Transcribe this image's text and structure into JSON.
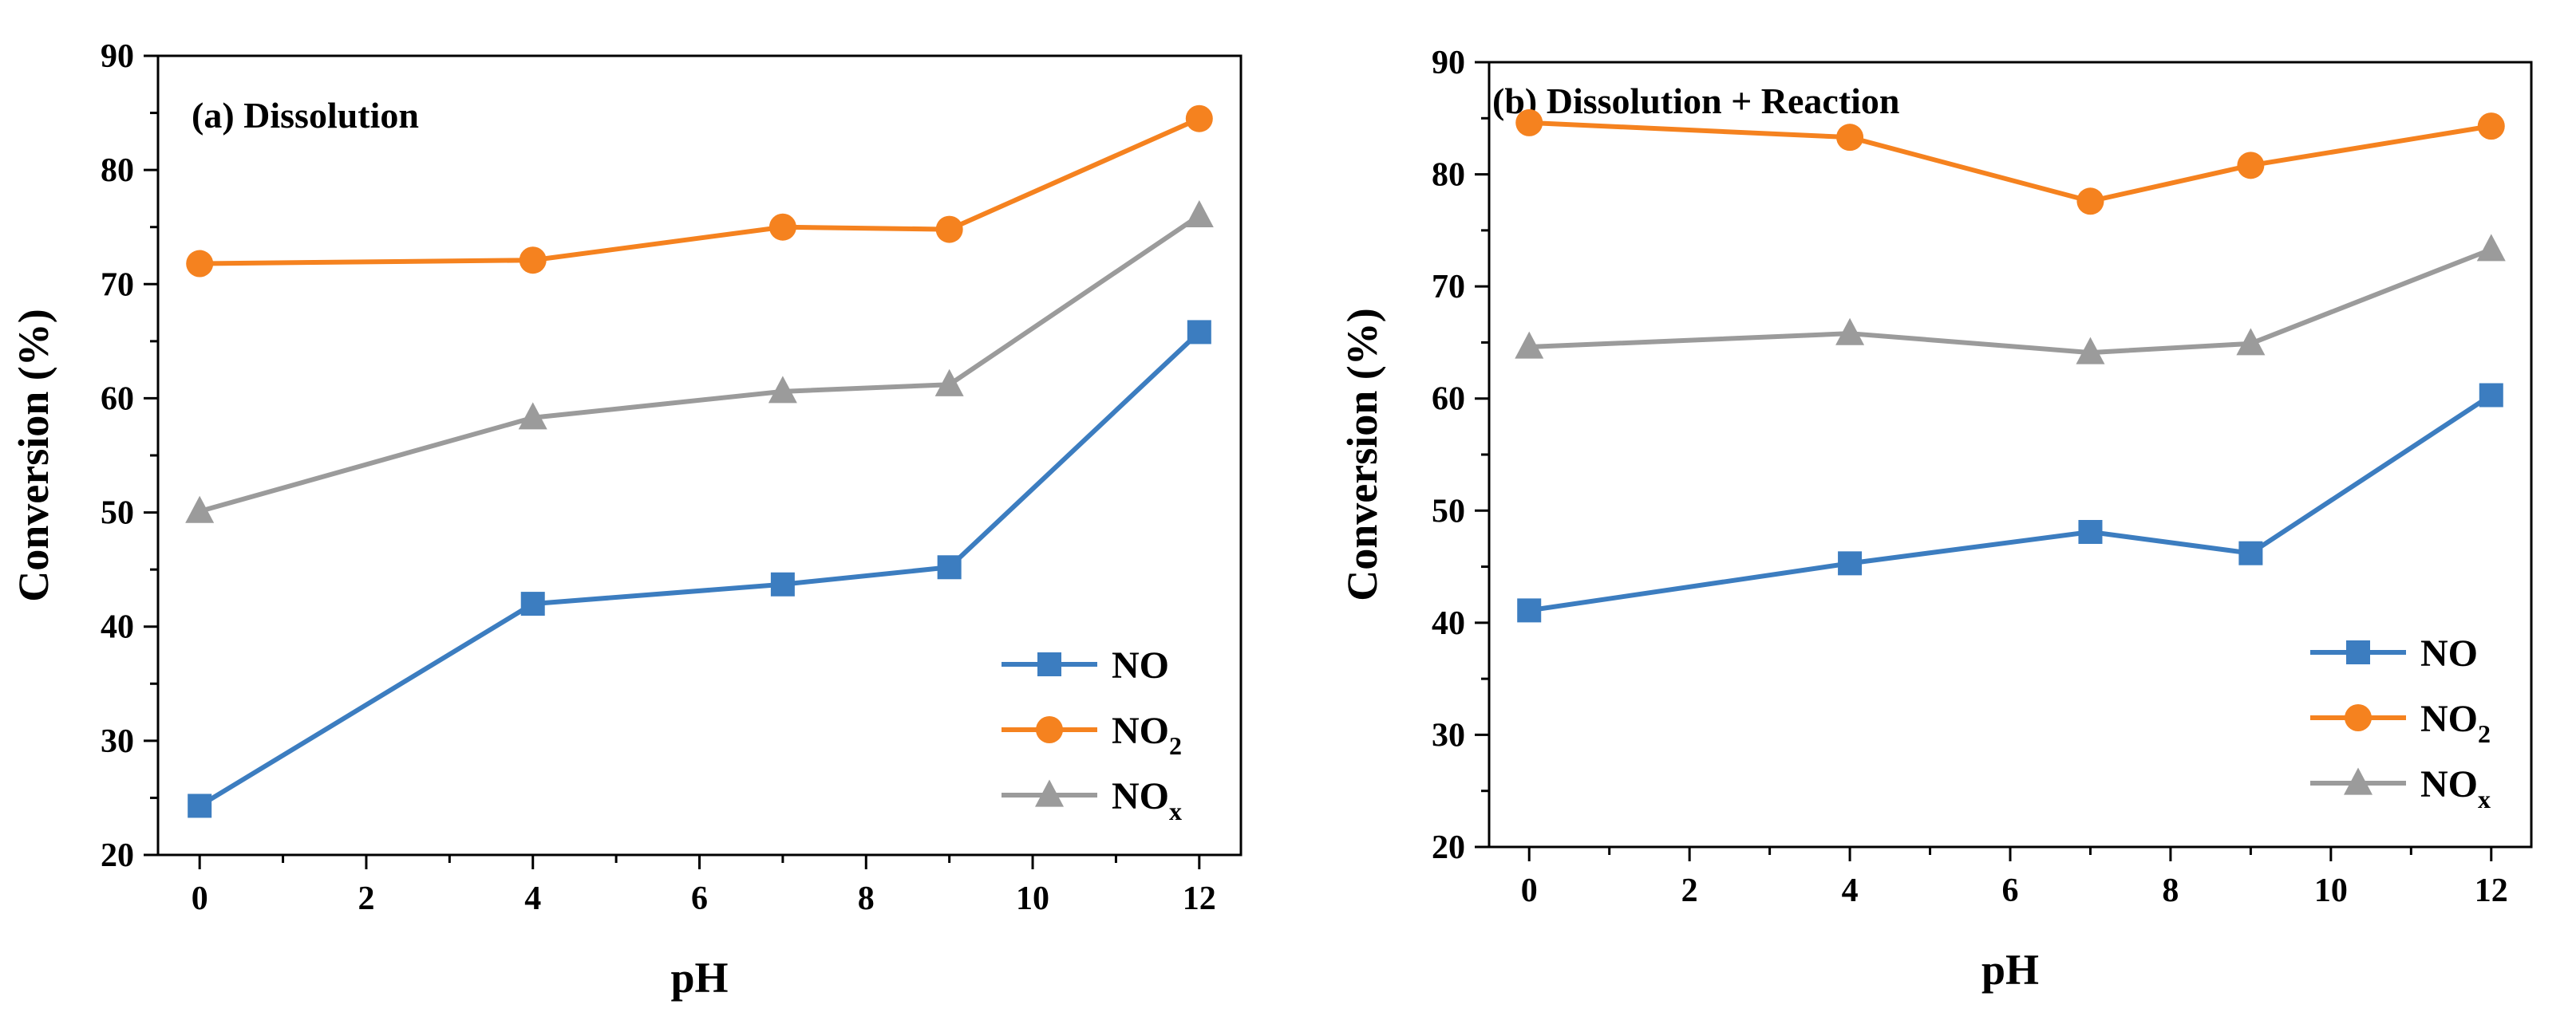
{
  "chart_data": [
    {
      "type": "line",
      "title": "(a) Dissolution",
      "xlabel": "pH",
      "ylabel": "Conversion (%)",
      "xlim": [
        -0.5,
        12.5
      ],
      "ylim": [
        20,
        90
      ],
      "xticks": [
        "0",
        "2",
        "4",
        "6",
        "8",
        "10",
        "12"
      ],
      "yticks": [
        "20",
        "30",
        "40",
        "50",
        "60",
        "70",
        "80",
        "90"
      ],
      "legend_position": "bottom-right",
      "x": [
        0,
        4,
        7,
        9,
        12
      ],
      "series": [
        {
          "label": "NO",
          "label_sub": "",
          "marker": "square",
          "color": "#3C7DC0",
          "values": [
            24.3,
            42.0,
            43.7,
            45.2,
            65.8
          ]
        },
        {
          "label": "NO",
          "label_sub": "2",
          "marker": "circle",
          "color": "#F5821F",
          "values": [
            71.8,
            72.1,
            75.0,
            74.8,
            84.5
          ]
        },
        {
          "label": "NO",
          "label_sub": "x",
          "marker": "triangle",
          "color": "#9B9B9B",
          "values": [
            50.1,
            58.3,
            60.6,
            61.2,
            76.0
          ]
        }
      ]
    },
    {
      "type": "line",
      "title": "(b) Dissolution + Reaction",
      "xlabel": "pH",
      "ylabel": "Conversion (%)",
      "xlim": [
        -0.5,
        12.5
      ],
      "ylim": [
        20,
        90
      ],
      "xticks": [
        "0",
        "2",
        "4",
        "6",
        "8",
        "10",
        "12"
      ],
      "yticks": [
        "20",
        "30",
        "40",
        "50",
        "60",
        "70",
        "80",
        "90"
      ],
      "legend_position": "bottom-right",
      "x": [
        0,
        4,
        7,
        9,
        12
      ],
      "series": [
        {
          "label": "NO",
          "label_sub": "",
          "marker": "square",
          "color": "#3C7DC0",
          "values": [
            41.1,
            45.3,
            48.1,
            46.2,
            60.3
          ]
        },
        {
          "label": "NO",
          "label_sub": "2",
          "marker": "circle",
          "color": "#F5821F",
          "values": [
            84.6,
            83.3,
            77.6,
            80.8,
            84.3
          ]
        },
        {
          "label": "NO",
          "label_sub": "x",
          "marker": "triangle",
          "color": "#9B9B9B",
          "values": [
            64.6,
            65.8,
            64.1,
            64.9,
            73.3
          ]
        }
      ]
    }
  ]
}
